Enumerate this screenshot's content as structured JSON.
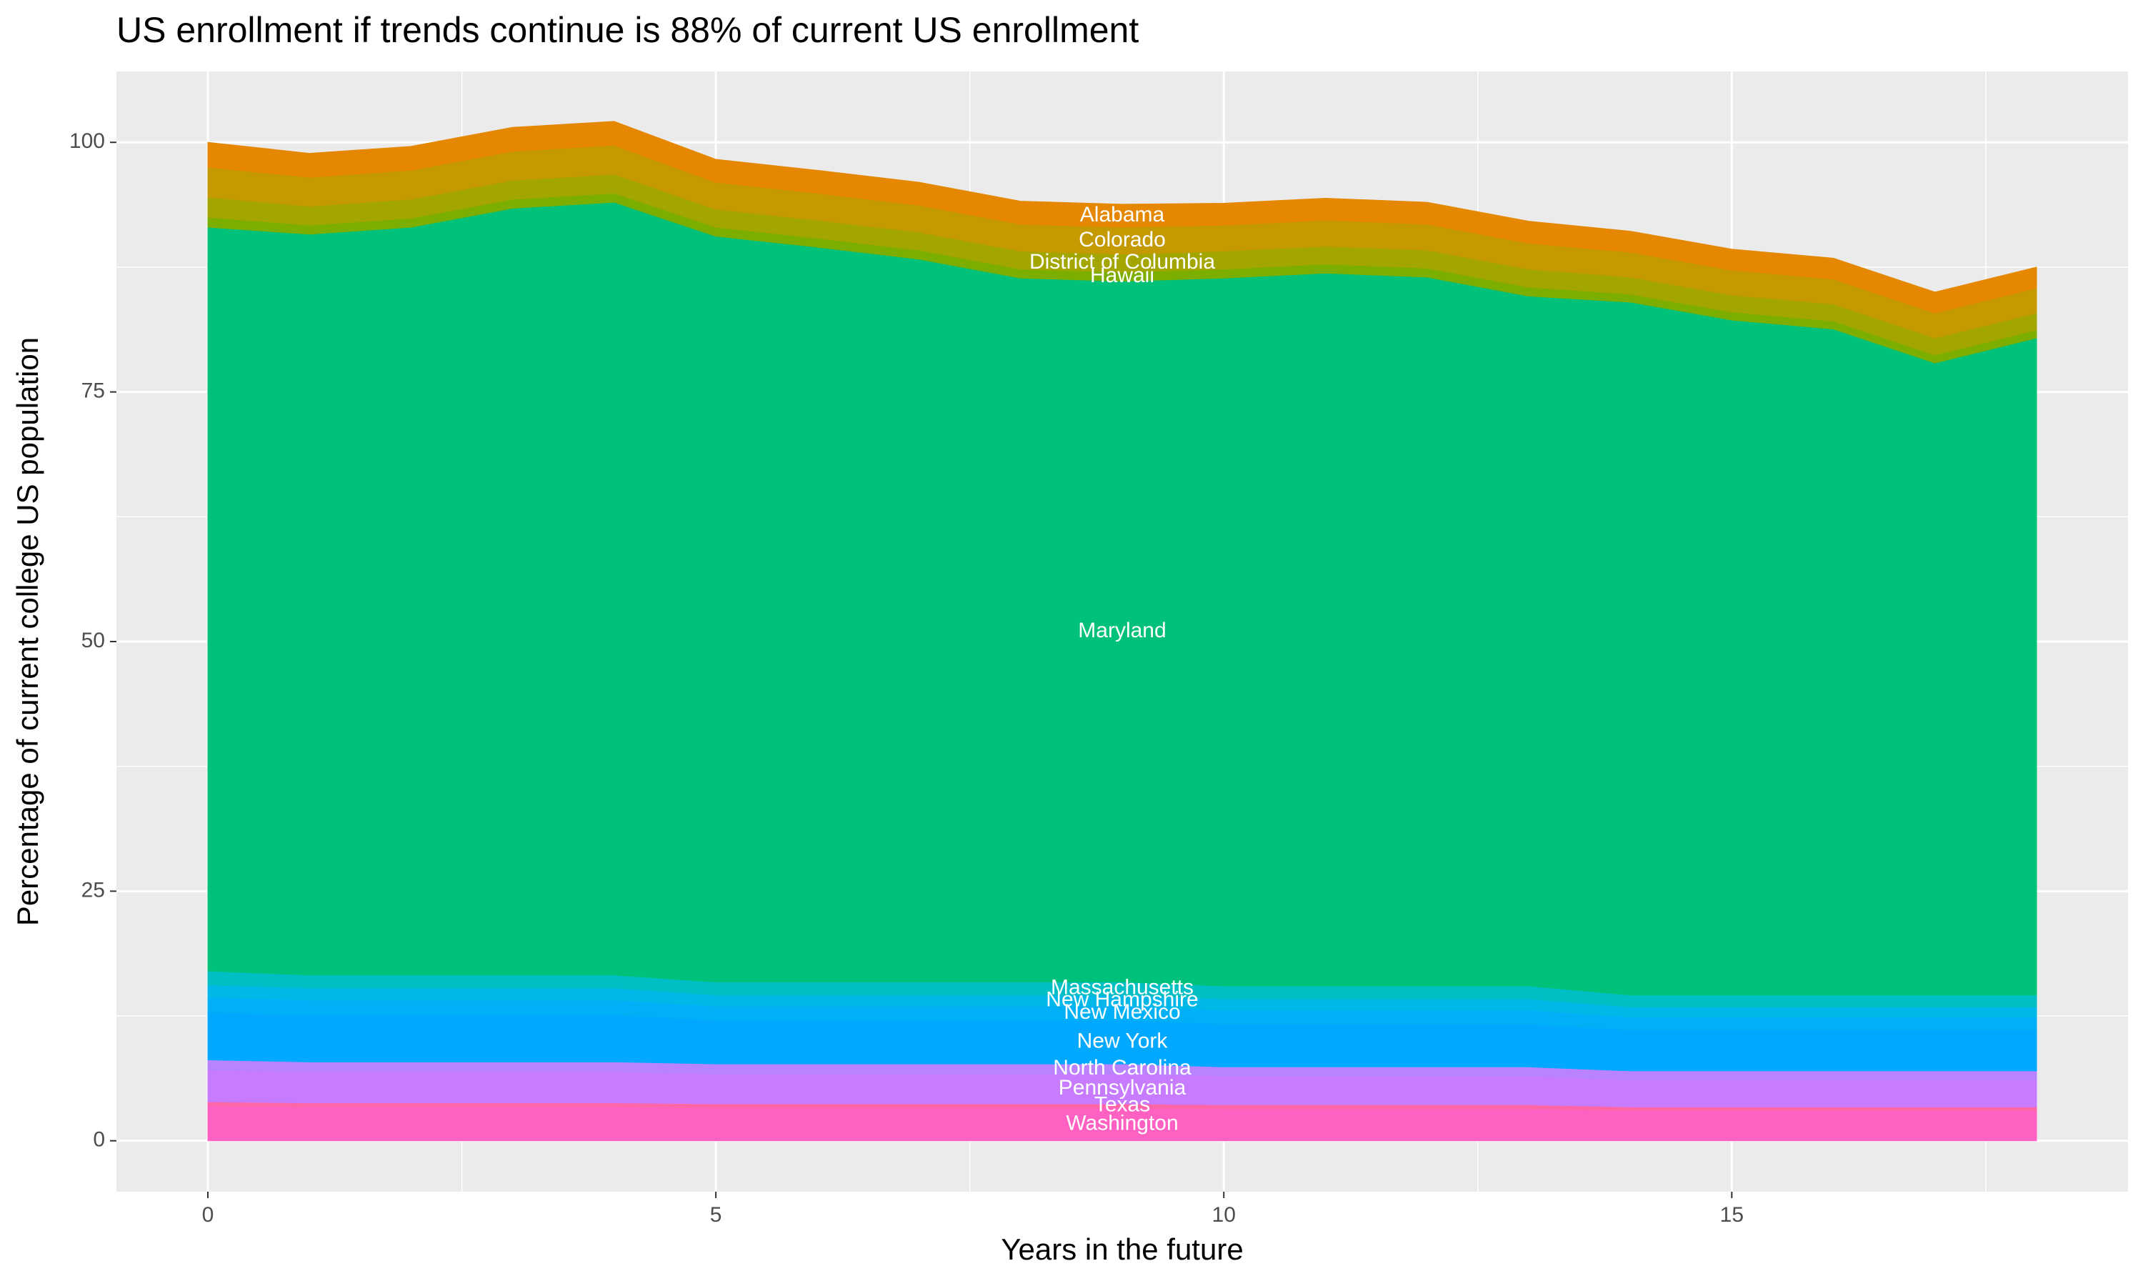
{
  "chart_data": {
    "type": "stacked_area",
    "title": "US enrollment if trends continue is 88% of current US enrollment",
    "x_label": "Years in the future",
    "y_label": "Percentage of current college US population",
    "x": [
      0,
      1,
      2,
      3,
      4,
      5,
      6,
      7,
      8,
      9,
      10,
      11,
      12,
      13,
      14,
      15,
      16,
      17,
      18
    ],
    "xlim": [
      -0.9,
      18.9
    ],
    "xticks": [
      0,
      5,
      10,
      15
    ],
    "ylim": [
      -5.1,
      107.1
    ],
    "yticks": [
      0,
      25,
      50,
      75,
      100
    ],
    "grid": true,
    "series": [
      {
        "name": "Washington",
        "color": "#ff61c3",
        "values": [
          3.5,
          3.4,
          3.4,
          3.4,
          3.4,
          3.3,
          3.3,
          3.3,
          3.3,
          3.3,
          3.2,
          3.2,
          3.2,
          3.2,
          3.0,
          3.0,
          3.0,
          3.0,
          3.0
        ]
      },
      {
        "name": "Texas",
        "color": "#ff66a8",
        "values": [
          0.4,
          0.4,
          0.4,
          0.4,
          0.4,
          0.4,
          0.4,
          0.4,
          0.4,
          0.4,
          0.4,
          0.4,
          0.4,
          0.4,
          0.4,
          0.4,
          0.4,
          0.4,
          0.4
        ]
      },
      {
        "name": "Pennsylvania",
        "color": "#c77cff",
        "values": [
          3.2,
          3.1,
          3.1,
          3.1,
          3.1,
          3.0,
          3.0,
          3.0,
          3.0,
          3.0,
          2.9,
          2.9,
          2.9,
          2.9,
          2.7,
          2.7,
          2.7,
          2.7,
          2.7
        ]
      },
      {
        "name": "North Carolina",
        "color": "#b983ff",
        "values": [
          1.0,
          1.0,
          1.0,
          1.0,
          1.0,
          1.0,
          1.0,
          1.0,
          1.0,
          1.0,
          0.9,
          0.9,
          0.9,
          0.9,
          0.9,
          0.9,
          0.9,
          0.9,
          0.9
        ]
      },
      {
        "name": "New York",
        "color": "#00a9ff",
        "values": [
          4.8,
          4.7,
          4.7,
          4.7,
          4.7,
          4.4,
          4.4,
          4.4,
          4.4,
          4.4,
          4.3,
          4.3,
          4.3,
          4.3,
          4.1,
          4.1,
          4.1,
          4.1,
          4.1
        ]
      },
      {
        "name": "New Mexico",
        "color": "#00b0f6",
        "values": [
          1.5,
          1.5,
          1.5,
          1.5,
          1.5,
          1.4,
          1.4,
          1.4,
          1.4,
          1.4,
          1.4,
          1.4,
          1.4,
          1.4,
          1.3,
          1.3,
          1.3,
          1.3,
          1.3
        ]
      },
      {
        "name": "New Hampshire",
        "color": "#00b8e7",
        "values": [
          1.2,
          1.2,
          1.2,
          1.2,
          1.2,
          1.1,
          1.1,
          1.1,
          1.1,
          1.1,
          1.1,
          1.1,
          1.1,
          1.1,
          1.0,
          1.0,
          1.0,
          1.0,
          1.0
        ]
      },
      {
        "name": "Massachusetts",
        "color": "#00bfc4",
        "values": [
          1.4,
          1.3,
          1.3,
          1.3,
          1.3,
          1.3,
          1.3,
          1.3,
          1.3,
          1.3,
          1.3,
          1.3,
          1.3,
          1.3,
          1.2,
          1.2,
          1.2,
          1.2,
          1.2
        ]
      },
      {
        "name": "Maryland",
        "color": "#00c17a",
        "values": [
          74.5,
          74.2,
          74.9,
          76.8,
          77.4,
          74.7,
          73.6,
          72.4,
          70.5,
          70.2,
          70.9,
          71.4,
          71.0,
          69.1,
          69.4,
          67.6,
          66.7,
          63.3,
          65.8
        ]
      },
      {
        "name": "Hawaii",
        "color": "#7cae00",
        "values": [
          1.0,
          0.9,
          0.9,
          0.9,
          0.9,
          0.9,
          0.9,
          0.9,
          0.9,
          0.9,
          0.9,
          0.9,
          0.9,
          0.9,
          0.8,
          0.8,
          0.8,
          0.8,
          0.8
        ]
      },
      {
        "name": "District of Columbia",
        "color": "#a3a500",
        "values": [
          2.0,
          1.9,
          1.9,
          1.9,
          1.9,
          1.8,
          1.8,
          1.8,
          1.8,
          1.8,
          1.8,
          1.8,
          1.8,
          1.8,
          1.7,
          1.7,
          1.7,
          1.7,
          1.7
        ]
      },
      {
        "name": "Colorado",
        "color": "#c49a00",
        "values": [
          3.0,
          2.9,
          2.9,
          2.9,
          2.9,
          2.7,
          2.7,
          2.7,
          2.7,
          2.7,
          2.6,
          2.6,
          2.6,
          2.6,
          2.5,
          2.5,
          2.5,
          2.5,
          2.5
        ]
      },
      {
        "name": "Alabama",
        "color": "#e58700",
        "values": [
          2.5,
          2.4,
          2.4,
          2.4,
          2.4,
          2.3,
          2.3,
          2.3,
          2.3,
          2.3,
          2.2,
          2.2,
          2.2,
          2.2,
          2.1,
          2.1,
          2.1,
          2.1,
          2.1
        ]
      }
    ]
  }
}
